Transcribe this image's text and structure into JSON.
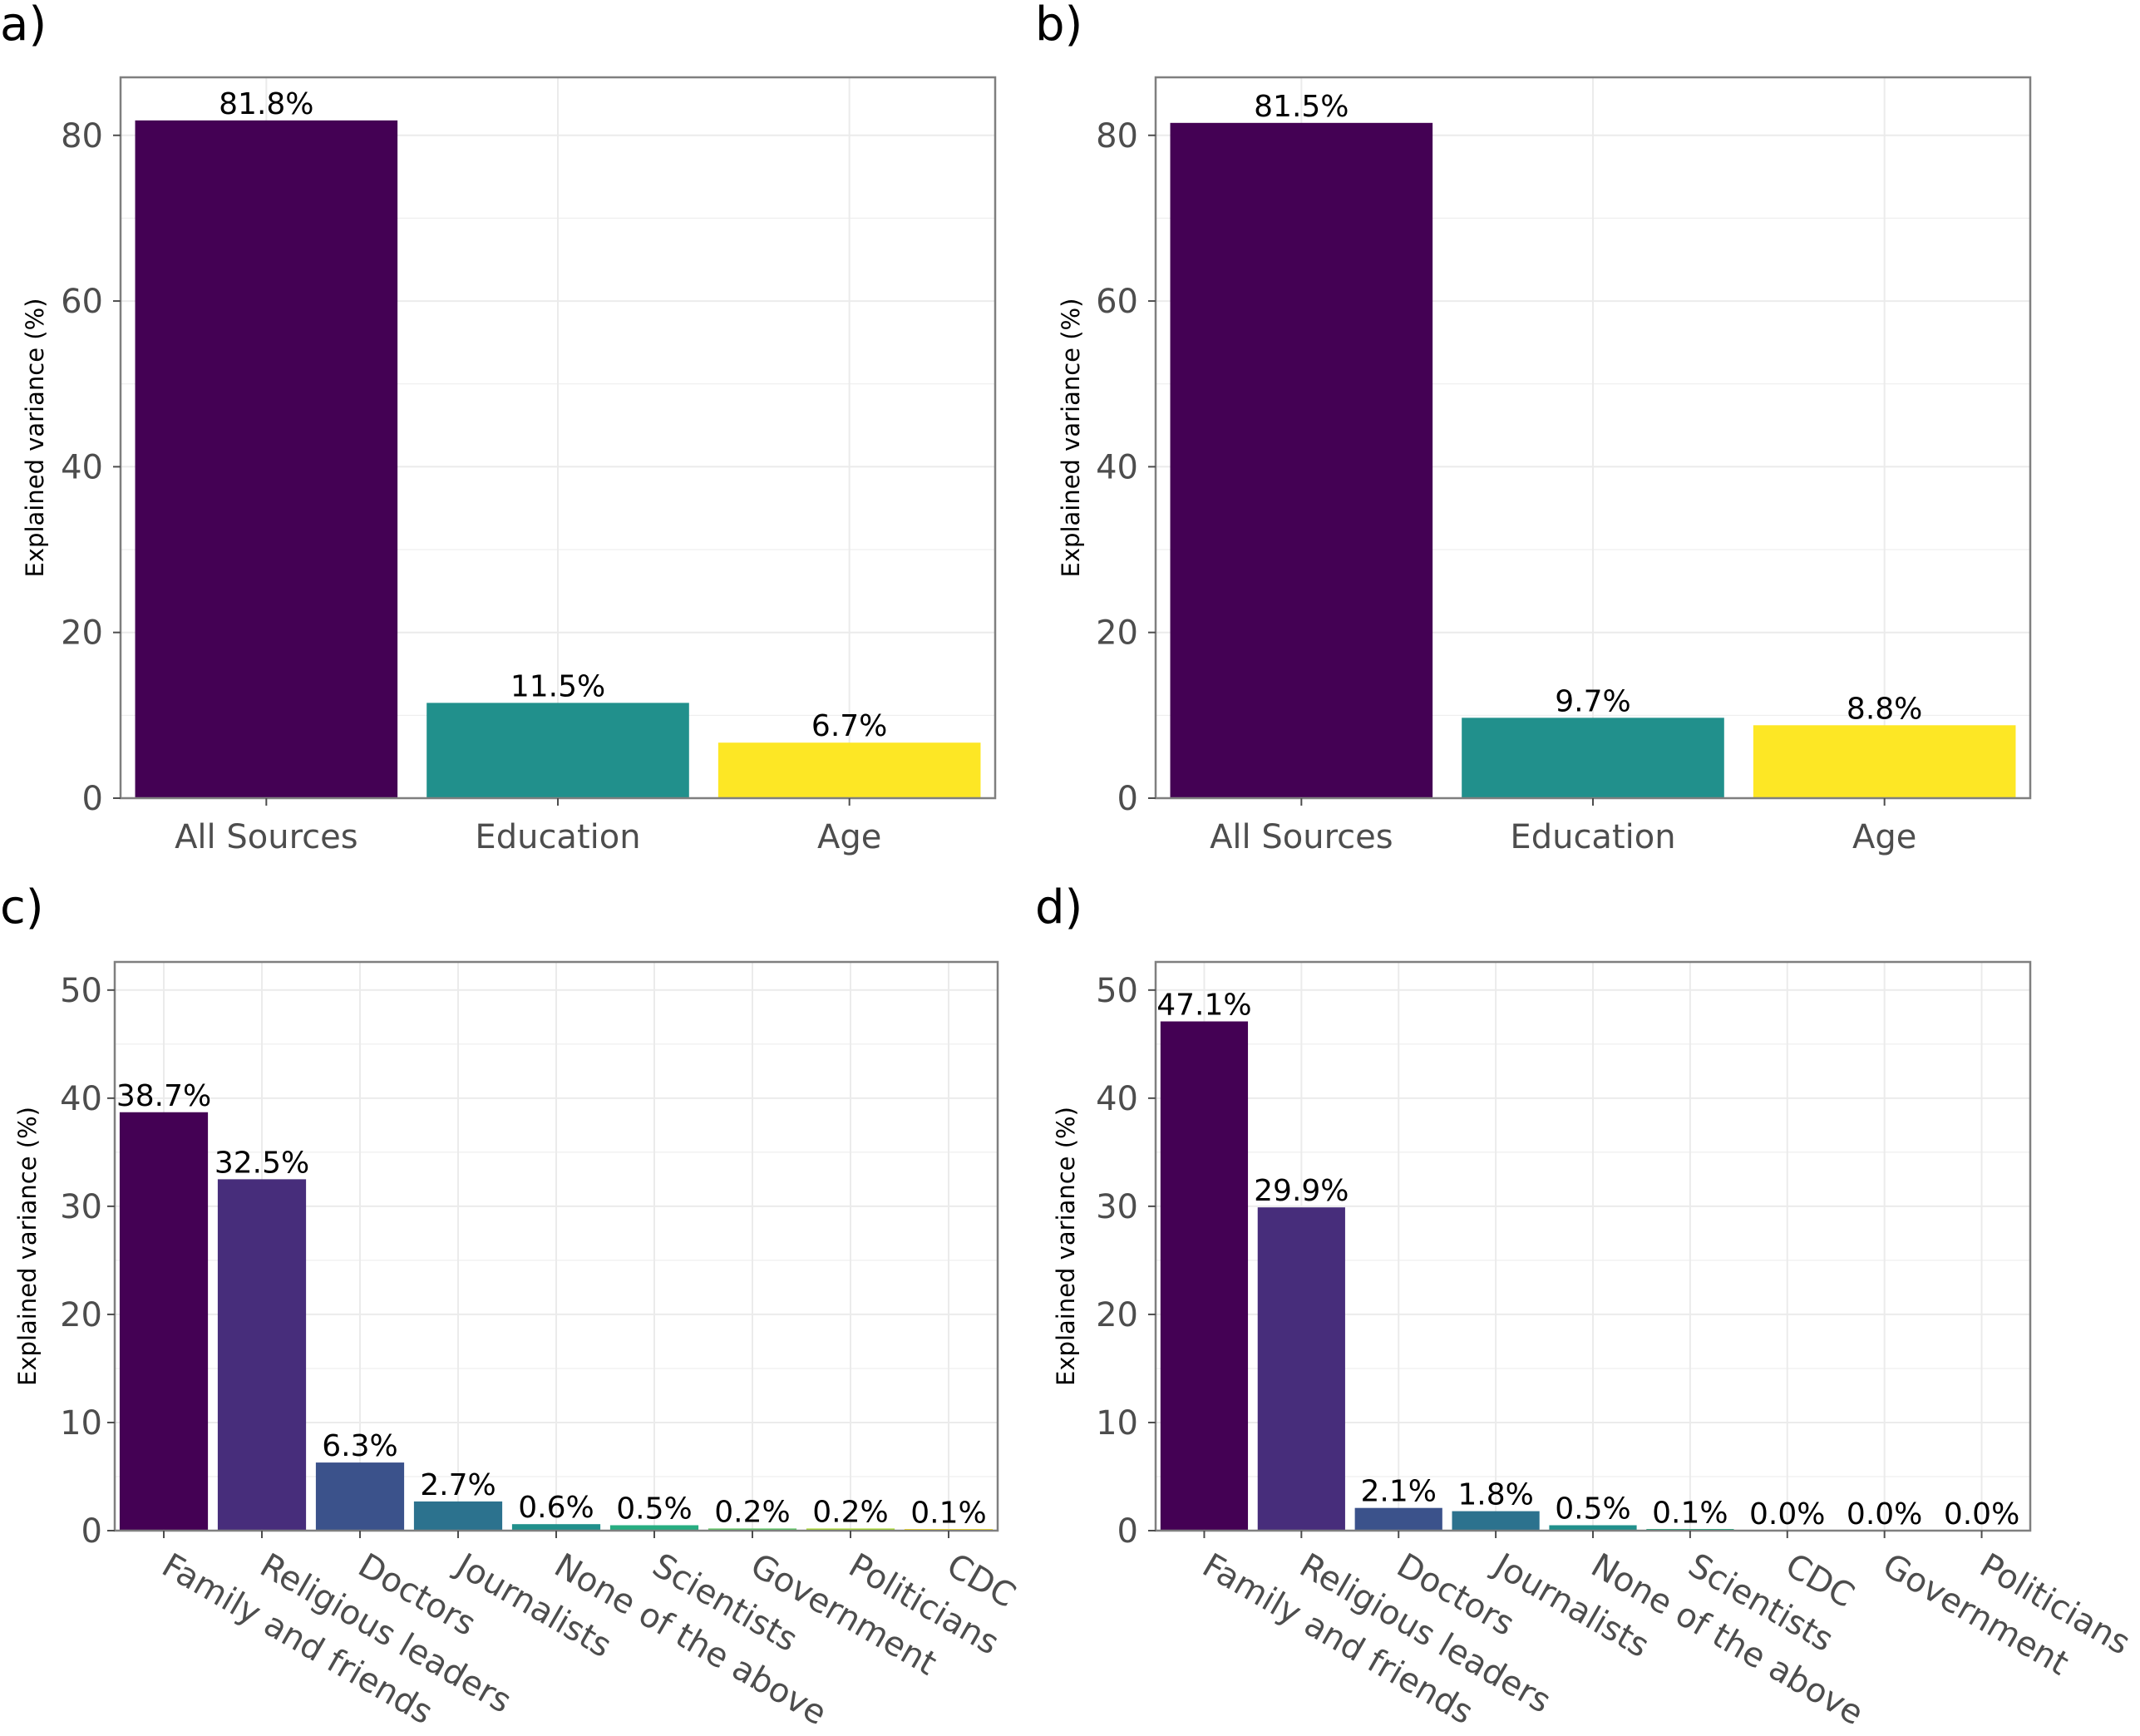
{
  "colors": {
    "panel_border": "#7f7f7f",
    "grid": "#ebebeb",
    "tick": "#4d4d4d",
    "palette_3": [
      "#440154",
      "#21908C",
      "#FDE725"
    ],
    "palette_9": [
      "#440154",
      "#472D7B",
      "#3B528B",
      "#2C728E",
      "#21908C",
      "#27AD81",
      "#5DC863",
      "#AADC32",
      "#FDE725"
    ]
  },
  "chart_data": [
    {
      "panel": "a)",
      "type": "bar",
      "ylabel": "Explained variance (%)",
      "ylim": [
        0,
        87
      ],
      "yticks": [
        0,
        20,
        40,
        60,
        80
      ],
      "categories": [
        "All Sources",
        "Education",
        "Age"
      ],
      "values": [
        81.8,
        11.5,
        6.7
      ],
      "value_labels": [
        "81.8%",
        "11.5%",
        "6.7%"
      ],
      "grid": true
    },
    {
      "panel": "b)",
      "type": "bar",
      "ylabel": "Explained variance (%)",
      "ylim": [
        0,
        87
      ],
      "yticks": [
        0,
        20,
        40,
        60,
        80
      ],
      "categories": [
        "All Sources",
        "Education",
        "Age"
      ],
      "values": [
        81.5,
        9.7,
        8.8
      ],
      "value_labels": [
        "81.5%",
        "9.7%",
        "8.8%"
      ],
      "grid": true
    },
    {
      "panel": "c)",
      "type": "bar",
      "ylabel": "Explained variance (%)",
      "ylim": [
        0,
        52.6
      ],
      "yticks": [
        0,
        10,
        20,
        30,
        40,
        50
      ],
      "categories": [
        "Family and friends",
        "Religious leaders",
        "Doctors",
        "Journalists",
        "None of the above",
        "Scientists",
        "Government",
        "Politicians",
        "CDC"
      ],
      "values": [
        38.7,
        32.5,
        6.3,
        2.7,
        0.6,
        0.5,
        0.2,
        0.2,
        0.1
      ],
      "value_labels": [
        "38.7%",
        "32.5%",
        "6.3%",
        "2.7%",
        "0.6%",
        "0.5%",
        "0.2%",
        "0.2%",
        "0.1%"
      ],
      "grid": true
    },
    {
      "panel": "d)",
      "type": "bar",
      "ylabel": "Explained variance (%)",
      "ylim": [
        0,
        52.6
      ],
      "yticks": [
        0,
        10,
        20,
        30,
        40,
        50
      ],
      "categories": [
        "Family and friends",
        "Religious leaders",
        "Doctors",
        "Journalists",
        "None of the above",
        "Scientists",
        "CDC",
        "Government",
        "Politicians"
      ],
      "values": [
        47.1,
        29.9,
        2.1,
        1.8,
        0.5,
        0.1,
        0.0,
        0.0,
        0.0
      ],
      "value_labels": [
        "47.1%",
        "29.9%",
        "2.1%",
        "1.8%",
        "0.5%",
        "0.1%",
        "0.0%",
        "0.0%",
        "0.0%"
      ],
      "grid": true
    }
  ]
}
